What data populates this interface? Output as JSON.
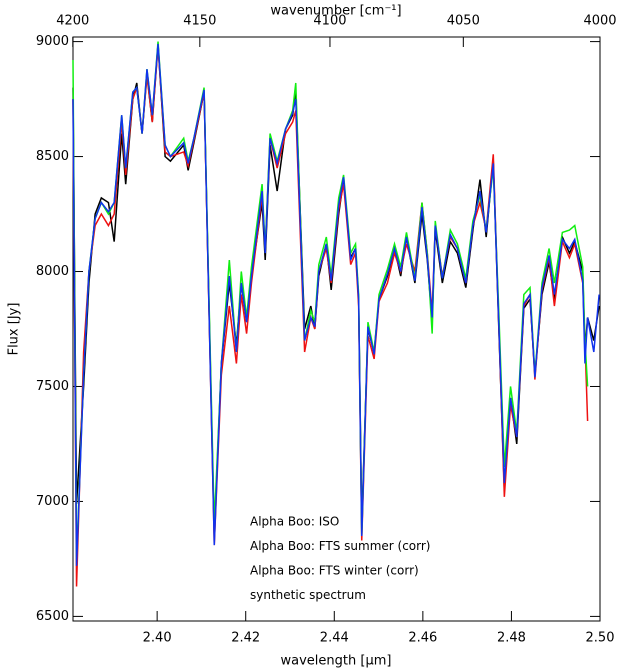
{
  "chart_data": {
    "type": "line",
    "xlabel": "wavelength [µm]",
    "ylabel": "Flux [Jy]",
    "x2label": "wavenumber [cm⁻¹]",
    "xlim": [
      2.381,
      2.5
    ],
    "ylim": [
      6480,
      9020
    ],
    "x2lim": [
      4200,
      4000
    ],
    "xticks": [
      {
        "value": 2.4,
        "label": "2.40"
      },
      {
        "value": 2.42,
        "label": "2.42"
      },
      {
        "value": 2.44,
        "label": "2.44"
      },
      {
        "value": 2.46,
        "label": "2.46"
      },
      {
        "value": 2.48,
        "label": "2.48"
      },
      {
        "value": 2.5,
        "label": "2.50"
      }
    ],
    "yticks": [
      6500,
      7000,
      7500,
      8000,
      8500,
      9000
    ],
    "x2ticks": [
      4200,
      4150,
      4100,
      4050,
      4000
    ],
    "legend": "lower center",
    "x": [
      2.381,
      2.3818,
      2.3834,
      2.3846,
      2.386,
      2.3874,
      2.389,
      2.3903,
      2.392,
      2.3929,
      2.3945,
      2.3954,
      2.3966,
      2.3977,
      2.3989,
      2.4002,
      2.4018,
      2.403,
      2.406,
      2.407,
      2.4083,
      2.4106,
      2.4129,
      2.4145,
      2.4163,
      2.4179,
      2.419,
      2.4202,
      2.4213,
      2.4237,
      2.4244,
      2.4255,
      2.4271,
      2.429,
      2.4306,
      2.4313,
      2.4333,
      2.4347,
      2.4356,
      2.4365,
      2.4382,
      2.4393,
      2.441,
      2.4421,
      2.4437,
      2.4448,
      2.4455,
      2.4462,
      2.4476,
      2.449,
      2.4501,
      2.452,
      2.4536,
      2.455,
      2.4563,
      2.4582,
      2.4598,
      2.461,
      2.4621,
      2.4628,
      2.4644,
      2.4662,
      2.4678,
      2.4697,
      2.4713,
      2.4729,
      2.4743,
      2.4759,
      2.4771,
      2.4784,
      2.4798,
      2.4812,
      2.4828,
      2.4842,
      2.4853,
      2.4869,
      2.4885,
      2.4897,
      2.4915,
      2.4931,
      2.4943,
      2.4961,
      2.4966,
      2.4972,
      2.4986,
      2.4998
    ],
    "series": [
      {
        "name": "Alpha Boo: ISO",
        "color": "#000000",
        "values": [
          8800,
          6990,
          7500,
          7950,
          8250,
          8320,
          8300,
          8130,
          8600,
          8380,
          8750,
          8820,
          8600,
          8860,
          8650,
          8990,
          8500,
          8480,
          8550,
          8440,
          8560,
          8780,
          6850,
          7600,
          7950,
          7680,
          7950,
          7780,
          7980,
          8300,
          8050,
          8550,
          8350,
          8620,
          8680,
          8780,
          7750,
          7850,
          7750,
          7980,
          8120,
          7920,
          8250,
          8400,
          8060,
          8100,
          7880,
          6900,
          7750,
          7650,
          7880,
          7980,
          8100,
          7980,
          8150,
          7950,
          8250,
          8050,
          7780,
          8180,
          7950,
          8130,
          8080,
          7930,
          8180,
          8400,
          8150,
          8480,
          7780,
          7050,
          7450,
          7250,
          7840,
          7880,
          7550,
          7900,
          8040,
          7880,
          8150,
          8080,
          8130,
          8000,
          7650,
          7800,
          7700,
          7850
        ]
      },
      {
        "name": "Alpha Boo: FTS summer (corr)",
        "color": "#ee1111",
        "values": [
          8750,
          6630,
          7650,
          8000,
          8200,
          8250,
          8200,
          8250,
          8650,
          8420,
          8750,
          8800,
          8600,
          8850,
          8650,
          8980,
          8520,
          8500,
          8520,
          8460,
          8570,
          8780,
          6810,
          7550,
          7850,
          7600,
          7900,
          7730,
          7950,
          8330,
          8100,
          8580,
          8450,
          8600,
          8650,
          8700,
          7650,
          7800,
          7750,
          8000,
          8100,
          7950,
          8270,
          8380,
          8030,
          8080,
          7850,
          6830,
          7720,
          7620,
          7870,
          7950,
          8080,
          8000,
          8120,
          8000,
          8300,
          8080,
          7820,
          8200,
          7980,
          8150,
          8100,
          7950,
          8200,
          8300,
          8180,
          8510,
          7800,
          7020,
          7420,
          7280,
          7850,
          7900,
          7530,
          7920,
          8060,
          7850,
          8130,
          8060,
          8120,
          7950,
          7700,
          7350,
          null,
          null
        ]
      },
      {
        "name": "Alpha Boo: FTS winter (corr)",
        "color": "#11ee11",
        "values": [
          8920,
          6750,
          7550,
          8000,
          8230,
          8300,
          8250,
          8300,
          8680,
          8450,
          8780,
          8800,
          8600,
          8880,
          8680,
          9000,
          8550,
          8500,
          8580,
          8480,
          8580,
          8800,
          6900,
          7600,
          8050,
          7650,
          8000,
          7800,
          8020,
          8380,
          8100,
          8600,
          8480,
          8620,
          8700,
          8820,
          7700,
          7830,
          7780,
          8030,
          8150,
          7980,
          8320,
          8420,
          8080,
          8120,
          7900,
          6850,
          7780,
          7650,
          7900,
          8010,
          8120,
          8020,
          8170,
          7970,
          8300,
          8080,
          7730,
          8220,
          7970,
          8180,
          8120,
          7970,
          8220,
          8330,
          8180,
          8450,
          7850,
          7150,
          7500,
          7300,
          7900,
          7930,
          7550,
          7950,
          8100,
          7950,
          8170,
          8180,
          8200,
          8020,
          7700,
          7500,
          null,
          null
        ]
      },
      {
        "name": "synthetic spectrum",
        "color": "#1133ee",
        "values": [
          8750,
          6720,
          7550,
          8000,
          8230,
          8300,
          8260,
          8300,
          8680,
          8450,
          8780,
          8800,
          8600,
          8880,
          8680,
          8990,
          8550,
          8500,
          8560,
          8470,
          8580,
          8790,
          6810,
          7600,
          7980,
          7650,
          7950,
          7780,
          7980,
          8350,
          8080,
          8580,
          8470,
          8620,
          8690,
          8750,
          7700,
          7800,
          7760,
          8000,
          8120,
          7960,
          8290,
          8410,
          8050,
          8100,
          7880,
          6850,
          7760,
          7640,
          7880,
          7990,
          8100,
          8000,
          8150,
          7960,
          8280,
          8060,
          7800,
          8200,
          7970,
          8160,
          8100,
          7950,
          8200,
          8350,
          8170,
          8470,
          7800,
          7080,
          7450,
          7280,
          7860,
          7900,
          7540,
          7930,
          8070,
          7900,
          8140,
          8100,
          8140,
          7960,
          7600,
          7800,
          7650,
          7900
        ]
      }
    ]
  }
}
